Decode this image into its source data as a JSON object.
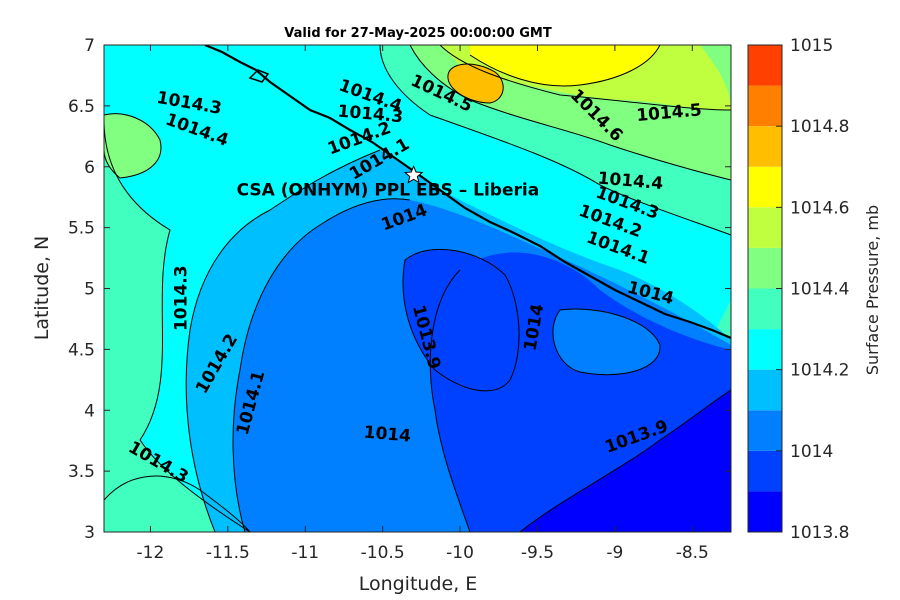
{
  "chart_data": {
    "type": "contour",
    "title": "Valid for 27-May-2025 00:00:00 GMT",
    "xlabel": "Longitude, E",
    "ylabel": "Latitude, N",
    "xlim": [
      -12.3,
      -8.25
    ],
    "ylim": [
      3,
      7
    ],
    "xticks": [
      -12,
      -11.5,
      -11,
      -10.5,
      -10,
      -9.5,
      -9,
      -8.5
    ],
    "yticks": [
      3,
      3.5,
      4,
      4.5,
      5,
      5.5,
      6,
      6.5,
      7
    ],
    "xtick_labels": [
      "-12",
      "-11.5",
      "-11",
      "-10.5",
      "-10",
      "-9.5",
      "-9",
      "-8.5"
    ],
    "ytick_labels": [
      "3",
      "3.5",
      "4",
      "4.5",
      "5",
      "5.5",
      "6",
      "6.5",
      "7"
    ],
    "colorbar": {
      "label": "Surface Pressure, mb",
      "levels": [
        1013.8,
        1013.9,
        1014,
        1014.1,
        1014.2,
        1014.3,
        1014.4,
        1014.5,
        1014.6,
        1014.7,
        1014.8,
        1014.9,
        1015
      ],
      "tick_values": [
        1013.8,
        1014,
        1014.2,
        1014.4,
        1014.6,
        1014.8,
        1015
      ],
      "tick_labels": [
        "1013.8",
        "1014",
        "1014.2",
        "1014.4",
        "1014.6",
        "1014.8",
        "1015"
      ],
      "colors": [
        "#0000ff",
        "#0040ff",
        "#0080ff",
        "#00bfff",
        "#00ffff",
        "#40ffbf",
        "#80ff80",
        "#bfff40",
        "#ffff00",
        "#ffbf00",
        "#ff8000",
        "#ff4000"
      ]
    },
    "site": {
      "label": "CSA (ONHYM) PPL EBS  – Liberia",
      "lon": -10.3,
      "lat": 5.93
    },
    "contour_labels": [
      {
        "text": "1014.3",
        "lon": -11.75,
        "lat": 6.52,
        "angle": 10
      },
      {
        "text": "1014.4",
        "lon": -11.7,
        "lat": 6.3,
        "angle": 20
      },
      {
        "text": "1014.4",
        "lon": -10.58,
        "lat": 6.58,
        "angle": 20
      },
      {
        "text": "1014.3",
        "lon": -10.58,
        "lat": 6.43,
        "angle": 5
      },
      {
        "text": "1014.5",
        "lon": -10.12,
        "lat": 6.6,
        "angle": 25
      },
      {
        "text": "1014.2",
        "lon": -10.65,
        "lat": 6.23,
        "angle": -20
      },
      {
        "text": "1014.1",
        "lon": -10.52,
        "lat": 6.06,
        "angle": -30
      },
      {
        "text": "1014.6",
        "lon": -9.12,
        "lat": 6.42,
        "angle": 45
      },
      {
        "text": "1014.5",
        "lon": -8.65,
        "lat": 6.44,
        "angle": -5
      },
      {
        "text": "1014.4",
        "lon": -8.9,
        "lat": 5.88,
        "angle": 5
      },
      {
        "text": "1014.3",
        "lon": -8.92,
        "lat": 5.7,
        "angle": 20
      },
      {
        "text": "1014.2",
        "lon": -9.03,
        "lat": 5.55,
        "angle": 20
      },
      {
        "text": "1014.1",
        "lon": -8.98,
        "lat": 5.33,
        "angle": 20
      },
      {
        "text": "1014",
        "lon": -10.36,
        "lat": 5.58,
        "angle": -20
      },
      {
        "text": "1014",
        "lon": -8.77,
        "lat": 4.96,
        "angle": 15
      },
      {
        "text": "1014.3",
        "lon": -11.8,
        "lat": 4.92,
        "angle": -90
      },
      {
        "text": "1014.2",
        "lon": -11.57,
        "lat": 4.38,
        "angle": -60
      },
      {
        "text": "1014.1",
        "lon": -11.35,
        "lat": 4.06,
        "angle": -75
      },
      {
        "text": "1013.9",
        "lon": -10.22,
        "lat": 4.6,
        "angle": 75
      },
      {
        "text": "1014",
        "lon": -9.52,
        "lat": 4.68,
        "angle": -80
      },
      {
        "text": "1014.3",
        "lon": -11.95,
        "lat": 3.57,
        "angle": 30
      },
      {
        "text": "1014",
        "lon": -10.47,
        "lat": 3.8,
        "angle": 5
      },
      {
        "text": "1013.9",
        "lon": -8.86,
        "lat": 3.78,
        "angle": -20
      }
    ]
  }
}
